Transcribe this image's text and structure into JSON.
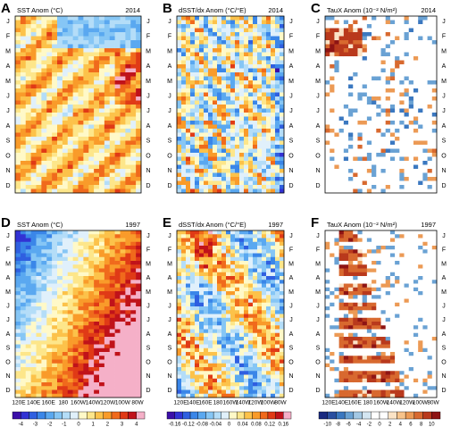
{
  "panels": [
    {
      "letter": "A",
      "title": "SST Anom (°C)",
      "year": "2014"
    },
    {
      "letter": "B",
      "title": "dSST/dx Anom (°C/°E)",
      "year": "2014"
    },
    {
      "letter": "C",
      "title": "TauX Anom (10⁻² N/m²)",
      "year": "2014"
    },
    {
      "letter": "D",
      "title": "SST Anom (°C)",
      "year": "1997"
    },
    {
      "letter": "E",
      "title": "dSST/dx Anom (°C/°E)",
      "year": "1997"
    },
    {
      "letter": "F",
      "title": "TauX Anom (10⁻² N/m²)",
      "year": "1997"
    }
  ],
  "months": [
    "J",
    "F",
    "M",
    "A",
    "M",
    "J",
    "J",
    "A",
    "S",
    "O",
    "N",
    "D"
  ],
  "lon_labels": [
    "120E",
    "140E",
    "160E",
    "180",
    "160W",
    "140W",
    "120W",
    "100W",
    "80W"
  ],
  "colorbars": [
    {
      "ticks": [
        "-4",
        "-3",
        "-2",
        "-1",
        "0",
        "1",
        "2",
        "3",
        "4"
      ]
    },
    {
      "ticks": [
        "-0.16",
        "-0.12",
        "-0.08",
        "-0.04",
        "0",
        "0.04",
        "0.08",
        "0.12",
        "0.16"
      ]
    },
    {
      "ticks": [
        "-10",
        "-8",
        "-6",
        "-4",
        "-2",
        "0",
        "2",
        "4",
        "6",
        "8",
        "10"
      ]
    }
  ]
}
